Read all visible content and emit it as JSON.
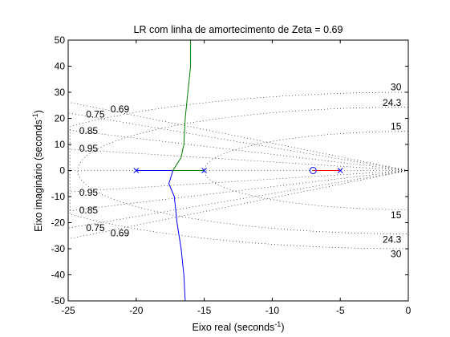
{
  "chart_data": {
    "type": "line",
    "title": "LR com linha de amortecimento de Zeta = 0.69",
    "xlabel": "Eixo real (seconds",
    "xlabel_sup": "-1",
    "xlabel_end": ")",
    "ylabel": "Eixo imaginário (seconds",
    "ylabel_sup": "-1",
    "ylabel_end": ")",
    "xlim": [
      -25,
      0
    ],
    "ylim": [
      -50,
      50
    ],
    "xticks": [
      -25,
      -20,
      -15,
      -10,
      -5,
      0
    ],
    "yticks": [
      -50,
      -40,
      -30,
      -20,
      -10,
      0,
      10,
      20,
      30,
      40,
      50
    ],
    "grid": "s-plane damping/frequency grid (dotted)",
    "poles": [
      [
        -20,
        0
      ],
      [
        -15,
        0
      ],
      [
        -5,
        0
      ]
    ],
    "zeros": [
      [
        -7,
        0
      ]
    ],
    "series": [
      {
        "color": "#0000ff",
        "points": [
          [
            -20,
            0
          ],
          [
            -17.3,
            0
          ],
          [
            -17.6,
            -5
          ],
          [
            -17.2,
            -10
          ],
          [
            -17,
            -20
          ],
          [
            -16.7,
            -30
          ],
          [
            -16.5,
            -40
          ],
          [
            -16.4,
            -50
          ]
        ]
      },
      {
        "color": "#007f00",
        "points": [
          [
            -15,
            0
          ],
          [
            -17.3,
            0
          ],
          [
            -16.7,
            5
          ],
          [
            -16.5,
            10
          ],
          [
            -16.4,
            20
          ],
          [
            -16.2,
            30
          ],
          [
            -16,
            40
          ],
          [
            -16,
            50
          ]
        ]
      },
      {
        "color": "#ff0000",
        "points": [
          [
            -5,
            0
          ],
          [
            -7,
            0
          ]
        ]
      }
    ],
    "damping_lines": [
      0.69,
      0.75,
      0.85,
      0.95
    ],
    "frequency_arcs": [
      15,
      24.3,
      30
    ],
    "damping_labels": [
      {
        "text": "0.69",
        "x": -21.2,
        "y": 23.5
      },
      {
        "text": "0.75",
        "x": -23,
        "y": 21.5
      },
      {
        "text": "0.85",
        "x": -23.5,
        "y": 15.3
      },
      {
        "text": "0.95",
        "x": -23.5,
        "y": 8.5
      },
      {
        "text": "0.69",
        "x": -21.2,
        "y": -24
      },
      {
        "text": "0.75",
        "x": -23,
        "y": -22
      },
      {
        "text": "0.85",
        "x": -23.5,
        "y": -15.3
      },
      {
        "text": "0.95",
        "x": -23.5,
        "y": -8.5
      }
    ],
    "frequency_labels": [
      {
        "text": "30",
        "x": -0.9,
        "y": 32
      },
      {
        "text": "24.3",
        "x": -1.2,
        "y": 26
      },
      {
        "text": "15",
        "x": -0.9,
        "y": 17
      },
      {
        "text": "15",
        "x": -0.9,
        "y": -17
      },
      {
        "text": "24.3",
        "x": -1.2,
        "y": -26.5
      },
      {
        "text": "30",
        "x": -0.9,
        "y": -32
      }
    ]
  }
}
